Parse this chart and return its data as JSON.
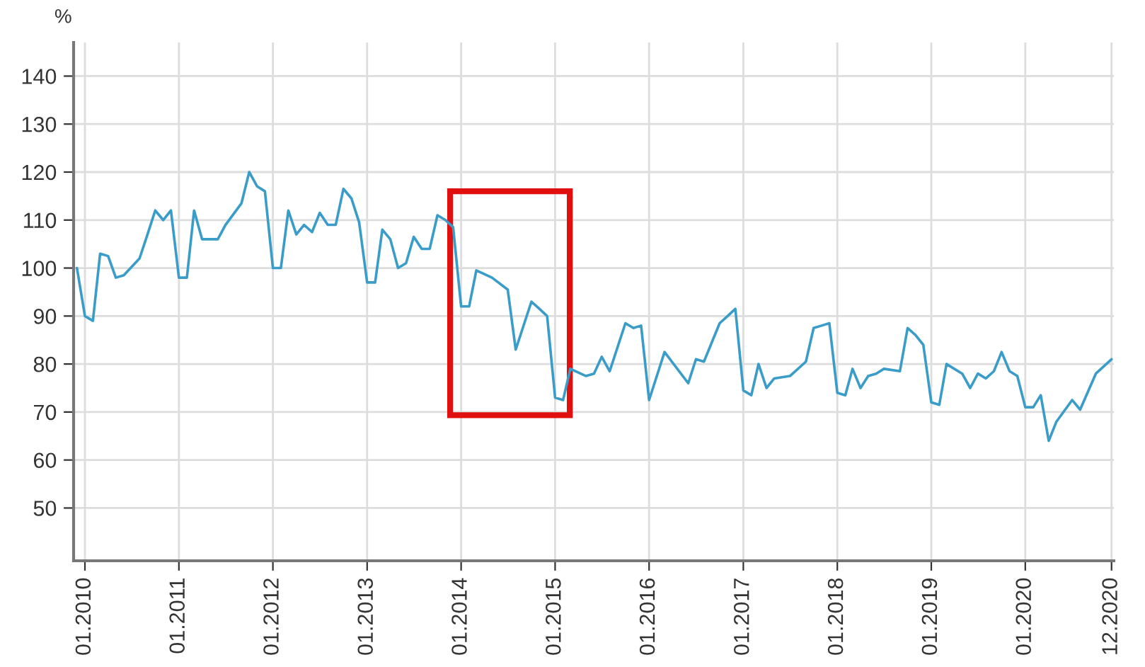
{
  "chart_data": {
    "type": "line",
    "ylabel": "%",
    "x": [
      "2009-12",
      "2010-01",
      "2010-02",
      "2010-03",
      "2010-04",
      "2010-05",
      "2010-06",
      "2010-08",
      "2010-09",
      "2010-10",
      "2010-11",
      "2010-12",
      "2011-01",
      "2011-02",
      "2011-03",
      "2011-04",
      "2011-06",
      "2011-07",
      "2011-09",
      "2011-10",
      "2011-11",
      "2011-12",
      "2012-01",
      "2012-02",
      "2012-03",
      "2012-04",
      "2012-05",
      "2012-06",
      "2012-07",
      "2012-08",
      "2012-09",
      "2012-10",
      "2012-11",
      "2012-12",
      "2013-01",
      "2013-02",
      "2013-03",
      "2013-04",
      "2013-05",
      "2013-06",
      "2013-07",
      "2013-08",
      "2013-09",
      "2013-10",
      "2013-11",
      "2013-12",
      "2014-01",
      "2014-02",
      "2014-03",
      "2014-05",
      "2014-07",
      "2014-08",
      "2014-10",
      "2014-11",
      "2014-12",
      "2015-01",
      "2015-02",
      "2015-03",
      "2015-05",
      "2015-06",
      "2015-07",
      "2015-08",
      "2015-10",
      "2015-11",
      "2015-12",
      "2016-01",
      "2016-03",
      "2016-06",
      "2016-07",
      "2016-08",
      "2016-10",
      "2016-11",
      "2016-12",
      "2017-01",
      "2017-02",
      "2017-03",
      "2017-04",
      "2017-05",
      "2017-07",
      "2017-09",
      "2017-10",
      "2017-11",
      "2017-12",
      "2018-01",
      "2018-02",
      "2018-03",
      "2018-04",
      "2018-05",
      "2018-06",
      "2018-07",
      "2018-09",
      "2018-10",
      "2018-11",
      "2018-12",
      "2019-01",
      "2019-02",
      "2019-03",
      "2019-05",
      "2019-06",
      "2019-07",
      "2019-08",
      "2019-09",
      "2019-10",
      "2019-11",
      "2019-12",
      "2020-01",
      "2020-02",
      "2020-03",
      "2020-04",
      "2020-05",
      "2020-07",
      "2020-08",
      "2020-10",
      "2020-12"
    ],
    "series": [
      {
        "color": "#3a9cc8",
        "values": [
          100,
          90,
          89,
          103,
          102.5,
          98,
          98.5,
          102,
          107,
          112,
          110,
          112,
          98,
          98,
          112,
          106,
          106,
          109,
          113.5,
          120,
          117,
          116,
          100,
          100,
          112,
          107,
          109,
          107.5,
          111.5,
          109,
          109,
          116.5,
          114.5,
          109.5,
          97,
          97,
          108,
          106,
          100,
          101,
          106.5,
          104,
          104,
          111,
          110,
          108.5,
          92,
          92,
          99.5,
          98,
          95.5,
          83,
          93,
          91.5,
          90,
          73,
          72.5,
          79,
          77.5,
          78,
          81.5,
          78.5,
          88.5,
          87.5,
          88,
          72.5,
          82.5,
          76,
          81,
          80.5,
          88.5,
          90,
          91.5,
          74.5,
          73.5,
          80,
          75,
          77,
          77.5,
          80.5,
          87.5,
          88,
          88.5,
          74,
          73.5,
          79,
          75,
          77.5,
          78,
          79,
          78.5,
          87.5,
          86,
          84,
          72,
          71.5,
          80,
          78,
          75,
          78,
          77,
          78.5,
          82.5,
          78.5,
          77.5,
          71,
          71,
          73.5,
          64,
          68,
          72.5,
          70.5,
          78,
          81
        ]
      }
    ],
    "xlim": [
      "2009-11-18",
      "2020-12-10"
    ],
    "xticks": [
      {
        "value": "2010-01",
        "label": "01.2010"
      },
      {
        "value": "2011-01",
        "label": "01.2011"
      },
      {
        "value": "2012-01",
        "label": "01.2012"
      },
      {
        "value": "2013-01",
        "label": "01.2013"
      },
      {
        "value": "2014-01",
        "label": "01.2014"
      },
      {
        "value": "2015-01",
        "label": "01.2015"
      },
      {
        "value": "2016-01",
        "label": "01.2016"
      },
      {
        "value": "2017-01",
        "label": "01.2017"
      },
      {
        "value": "2018-01",
        "label": "01.2018"
      },
      {
        "value": "2019-01",
        "label": "01.2019"
      },
      {
        "value": "2020-01",
        "label": "01.2020"
      },
      {
        "value": "2020-12",
        "label": "12.2020"
      }
    ],
    "ylim": [
      39,
      147
    ],
    "yticks": [
      50,
      60,
      70,
      80,
      90,
      100,
      110,
      120,
      130,
      140
    ],
    "grid": true,
    "marker": "none",
    "line_style": "solid"
  }
}
